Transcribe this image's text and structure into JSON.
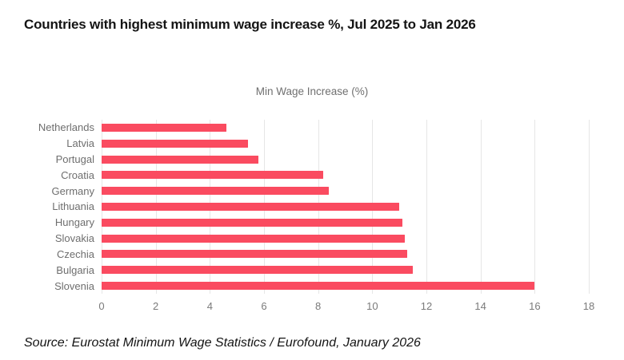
{
  "page": {
    "title": "Countries with highest minimum wage increase %, Jul 2025 to Jan 2026",
    "source": "Source: Eurostat Minimum Wage Statistics / Eurofound, January 2026"
  },
  "chart_data": {
    "type": "bar",
    "orientation": "horizontal",
    "title": "Min Wage Increase (%)",
    "categories": [
      "Netherlands",
      "Latvia",
      "Portugal",
      "Croatia",
      "Germany",
      "Lithuania",
      "Hungary",
      "Slovakia",
      "Czechia",
      "Bulgaria",
      "Slovenia"
    ],
    "values": [
      4.6,
      5.4,
      5.8,
      8.2,
      8.4,
      11.0,
      11.1,
      11.2,
      11.3,
      11.5,
      16.0
    ],
    "xlabel": "",
    "ylabel": "",
    "xlim": [
      0,
      18
    ],
    "xticks": [
      0,
      2,
      4,
      6,
      8,
      10,
      12,
      14,
      16,
      18
    ],
    "grid": true,
    "legend": "none",
    "colors": {
      "bar": "#fa4b60",
      "gridline": "#e6e6e6",
      "category_label": "#6e6e6e",
      "tick_label": "#7a7a7a",
      "chart_title": "#707070",
      "title_text": "#141414"
    }
  }
}
